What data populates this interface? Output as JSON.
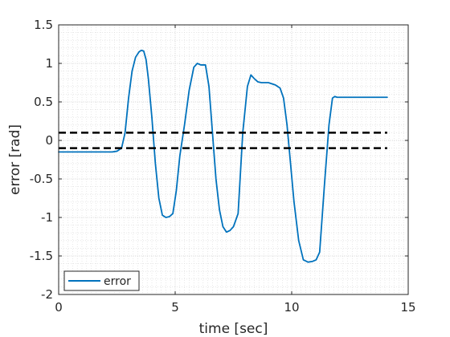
{
  "chart_data": {
    "type": "line",
    "xlabel": "time [sec]",
    "ylabel": "error [rad]",
    "xlim": [
      0,
      15
    ],
    "ylim": [
      -2,
      1.5
    ],
    "x_ticks": [
      0,
      5,
      10,
      15
    ],
    "y_ticks": [
      -2,
      -1.5,
      -1,
      -0.5,
      0,
      0.5,
      1,
      1.5
    ],
    "x_tick_labels": [
      "0",
      "5",
      "10",
      "15"
    ],
    "y_tick_labels": [
      "-2",
      "-1.5",
      "-1",
      "-0.5",
      "0",
      "0.5",
      "1",
      "1.5"
    ],
    "grid": true,
    "minor_grid": true,
    "legend_position": "bottom-left",
    "series": [
      {
        "name": "error",
        "color": "#0072BD",
        "x": [
          0,
          0.5,
          1,
          1.5,
          2,
          2.3,
          2.5,
          2.7,
          2.85,
          3.0,
          3.15,
          3.3,
          3.45,
          3.55,
          3.65,
          3.75,
          3.85,
          4.0,
          4.15,
          4.3,
          4.45,
          4.6,
          4.75,
          4.9,
          5.05,
          5.2,
          5.4,
          5.6,
          5.8,
          5.95,
          6.1,
          6.3,
          6.45,
          6.6,
          6.75,
          6.9,
          7.05,
          7.2,
          7.35,
          7.5,
          7.7,
          7.9,
          8.1,
          8.25,
          8.4,
          8.55,
          8.7,
          9.0,
          9.3,
          9.5,
          9.65,
          9.8,
          9.95,
          10.1,
          10.3,
          10.5,
          10.7,
          10.9,
          11.05,
          11.2,
          11.4,
          11.6,
          11.75,
          11.85,
          11.95,
          12.1,
          12.5,
          13,
          13.5,
          14.1
        ],
        "y": [
          -0.15,
          -0.15,
          -0.15,
          -0.15,
          -0.15,
          -0.15,
          -0.14,
          -0.1,
          0.1,
          0.55,
          0.9,
          1.08,
          1.15,
          1.17,
          1.16,
          1.05,
          0.8,
          0.3,
          -0.3,
          -0.75,
          -0.97,
          -1.0,
          -0.99,
          -0.95,
          -0.65,
          -0.2,
          0.2,
          0.65,
          0.95,
          1.0,
          0.98,
          0.98,
          0.7,
          0.1,
          -0.5,
          -0.9,
          -1.12,
          -1.19,
          -1.17,
          -1.12,
          -0.95,
          0.1,
          0.7,
          0.85,
          0.8,
          0.76,
          0.75,
          0.75,
          0.72,
          0.68,
          0.55,
          0.2,
          -0.3,
          -0.8,
          -1.3,
          -1.55,
          -1.58,
          -1.57,
          -1.55,
          -1.45,
          -0.6,
          0.2,
          0.55,
          0.57,
          0.56,
          0.56,
          0.56,
          0.56,
          0.56,
          0.56
        ]
      },
      {
        "color": "#000000",
        "style": "dashed",
        "x": [
          0,
          14.1
        ],
        "y": [
          0.1,
          0.1
        ]
      },
      {
        "color": "#000000",
        "style": "dashed",
        "x": [
          0,
          14.1
        ],
        "y": [
          -0.1,
          -0.1
        ]
      }
    ]
  }
}
